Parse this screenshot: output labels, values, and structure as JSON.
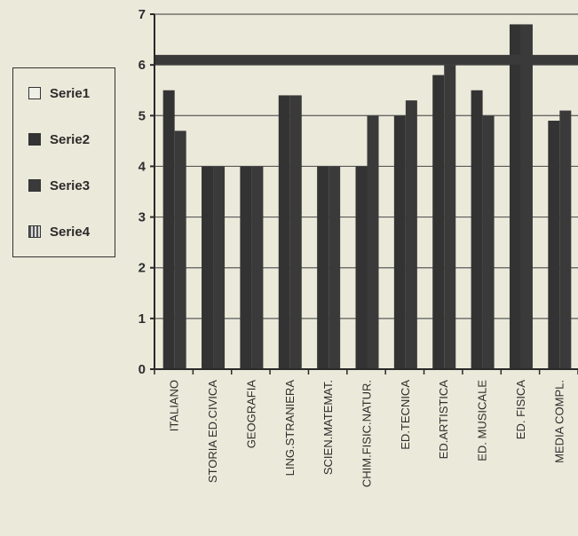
{
  "chart_data": {
    "type": "bar",
    "title": "",
    "xlabel": "",
    "ylabel": "",
    "ylim": [
      0,
      7
    ],
    "yticks": [
      0,
      1,
      2,
      3,
      4,
      5,
      6,
      7
    ],
    "grid": true,
    "legend_position": "left",
    "categories": [
      "ITALIANO",
      "STORIA ED.CIVICA",
      "GEOGRAFIA",
      "LING.STRANIERA",
      "SCIEN.MATEMAT.",
      "CHIM.FISIC.NATUR.",
      "ED.TECNICA",
      "ED.ARTISTICA",
      "ED. MUSICALE",
      "ED. FISICA",
      "MEDIA COMPL."
    ],
    "series": [
      {
        "name": "Serie1",
        "values": [
          null,
          null,
          null,
          null,
          null,
          null,
          null,
          null,
          null,
          null,
          null
        ],
        "color": "#f0efe6"
      },
      {
        "name": "Serie2",
        "values": [
          5.5,
          4.0,
          4.0,
          5.4,
          4.0,
          4.0,
          5.0,
          5.8,
          5.5,
          6.8,
          4.9
        ],
        "color": "#333333"
      },
      {
        "name": "Serie3",
        "values": [
          4.7,
          4.0,
          4.0,
          5.4,
          4.0,
          5.0,
          5.3,
          6.0,
          5.0,
          6.8,
          5.1
        ],
        "color": "#3a3a3a"
      },
      {
        "name": "Serie4",
        "values": [
          6.1,
          6.1,
          6.1,
          6.1,
          6.1,
          6.1,
          6.1,
          6.1,
          6.1,
          6.1,
          6.1
        ],
        "color": "#3a3a3a"
      }
    ]
  }
}
